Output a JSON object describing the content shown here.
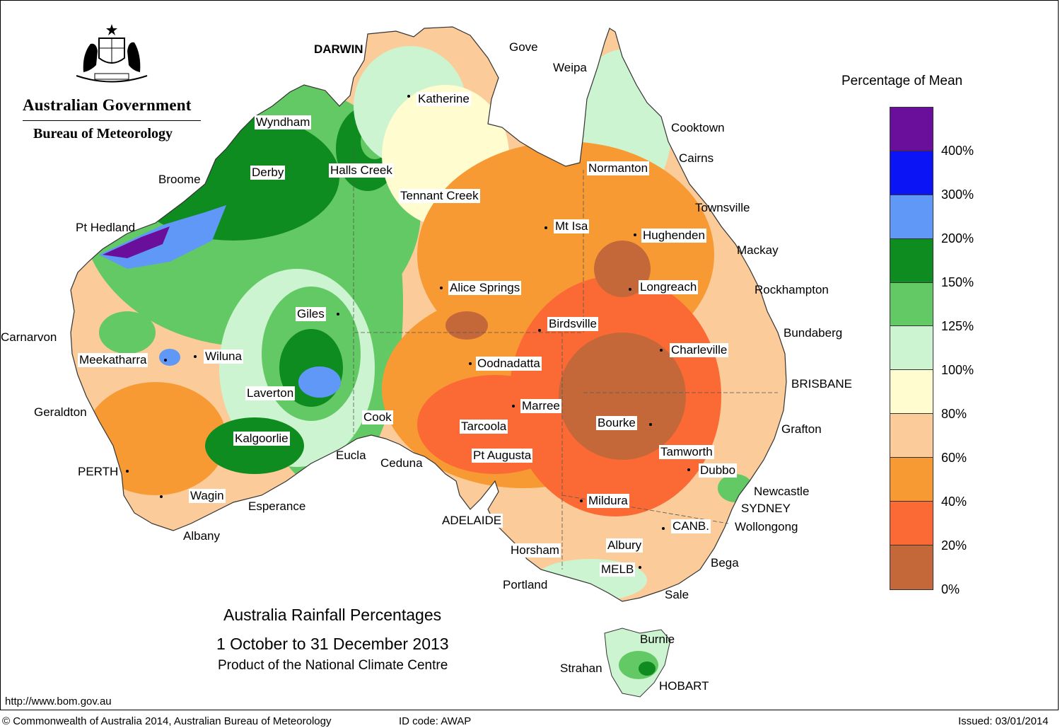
{
  "org": {
    "government": "Australian Government",
    "agency": "Bureau of Meteorology"
  },
  "title": {
    "line1": "Australia Rainfall Percentages",
    "line2": "1 October to 31 December 2013",
    "line3": "Product of the National Climate Centre"
  },
  "legend": {
    "title": "Percentage of Mean",
    "colors": [
      "#6a0f9c",
      "#0a14f4",
      "#5f98f6",
      "#0f8c1f",
      "#63c964",
      "#cdf4d1",
      "#fffdcf",
      "#fbcb99",
      "#f89a34",
      "#fb6a35",
      "#c4683a"
    ],
    "ticks": [
      "400%",
      "300%",
      "200%",
      "150%",
      "125%",
      "100%",
      "80%",
      "60%",
      "40%",
      "20%",
      "0%"
    ]
  },
  "places": [
    {
      "name": "DARWIN",
      "boxed": false
    },
    {
      "name": "Gove",
      "boxed": false
    },
    {
      "name": "Weipa",
      "boxed": false
    },
    {
      "name": "Katherine",
      "boxed": true
    },
    {
      "name": "Wyndham",
      "boxed": true
    },
    {
      "name": "Cooktown",
      "boxed": false
    },
    {
      "name": "Cairns",
      "boxed": false
    },
    {
      "name": "Normanton",
      "boxed": true
    },
    {
      "name": "Derby",
      "boxed": true
    },
    {
      "name": "Halls Creek",
      "boxed": true
    },
    {
      "name": "Broome",
      "boxed": false
    },
    {
      "name": "Tennant Creek",
      "boxed": true
    },
    {
      "name": "Townsville",
      "boxed": false
    },
    {
      "name": "Pt Hedland",
      "boxed": false
    },
    {
      "name": "Mt Isa",
      "boxed": true
    },
    {
      "name": "Hughenden",
      "boxed": true
    },
    {
      "name": "Mackay",
      "boxed": false
    },
    {
      "name": "Alice Springs",
      "boxed": true
    },
    {
      "name": "Longreach",
      "boxed": true
    },
    {
      "name": "Rockhampton",
      "boxed": false
    },
    {
      "name": "Giles",
      "boxed": true
    },
    {
      "name": "Birdsville",
      "boxed": true
    },
    {
      "name": "Carnarvon",
      "boxed": false
    },
    {
      "name": "Bundaberg",
      "boxed": false
    },
    {
      "name": "Charleville",
      "boxed": true
    },
    {
      "name": "Meekatharra",
      "boxed": true
    },
    {
      "name": "Wiluna",
      "boxed": true
    },
    {
      "name": "Oodnadatta",
      "boxed": true
    },
    {
      "name": "BRISBANE",
      "boxed": false
    },
    {
      "name": "Laverton",
      "boxed": true
    },
    {
      "name": "Marree",
      "boxed": true
    },
    {
      "name": "Geraldton",
      "boxed": false
    },
    {
      "name": "Cook",
      "boxed": true
    },
    {
      "name": "Bourke",
      "boxed": true
    },
    {
      "name": "Tarcoola",
      "boxed": true
    },
    {
      "name": "Grafton",
      "boxed": false
    },
    {
      "name": "Kalgoorlie",
      "boxed": true
    },
    {
      "name": "Eucla",
      "boxed": false
    },
    {
      "name": "Pt Augusta",
      "boxed": true
    },
    {
      "name": "Tamworth",
      "boxed": true
    },
    {
      "name": "Ceduna",
      "boxed": false
    },
    {
      "name": "PERTH",
      "boxed": false
    },
    {
      "name": "Dubbo",
      "boxed": true
    },
    {
      "name": "Newcastle",
      "boxed": false
    },
    {
      "name": "Wagin",
      "boxed": true
    },
    {
      "name": "Mildura",
      "boxed": true
    },
    {
      "name": "Esperance",
      "boxed": false
    },
    {
      "name": "SYDNEY",
      "boxed": false
    },
    {
      "name": "ADELAIDE",
      "boxed": true
    },
    {
      "name": "CANB.",
      "boxed": true
    },
    {
      "name": "Wollongong",
      "boxed": false
    },
    {
      "name": "Albany",
      "boxed": false
    },
    {
      "name": "Horsham",
      "boxed": true
    },
    {
      "name": "Albury",
      "boxed": true
    },
    {
      "name": "Bega",
      "boxed": false
    },
    {
      "name": "MELB",
      "boxed": true
    },
    {
      "name": "Portland",
      "boxed": false
    },
    {
      "name": "Sale",
      "boxed": false
    },
    {
      "name": "Burnie",
      "boxed": false
    },
    {
      "name": "Strahan",
      "boxed": false
    },
    {
      "name": "HOBART",
      "boxed": false
    }
  ],
  "footer": {
    "url": "http://www.bom.gov.au",
    "copyright": "© Commonwealth of Australia 2014, Australian Bureau of Meteorology",
    "id_code": "ID code: AWAP",
    "issued": "Issued: 03/01/2014"
  }
}
